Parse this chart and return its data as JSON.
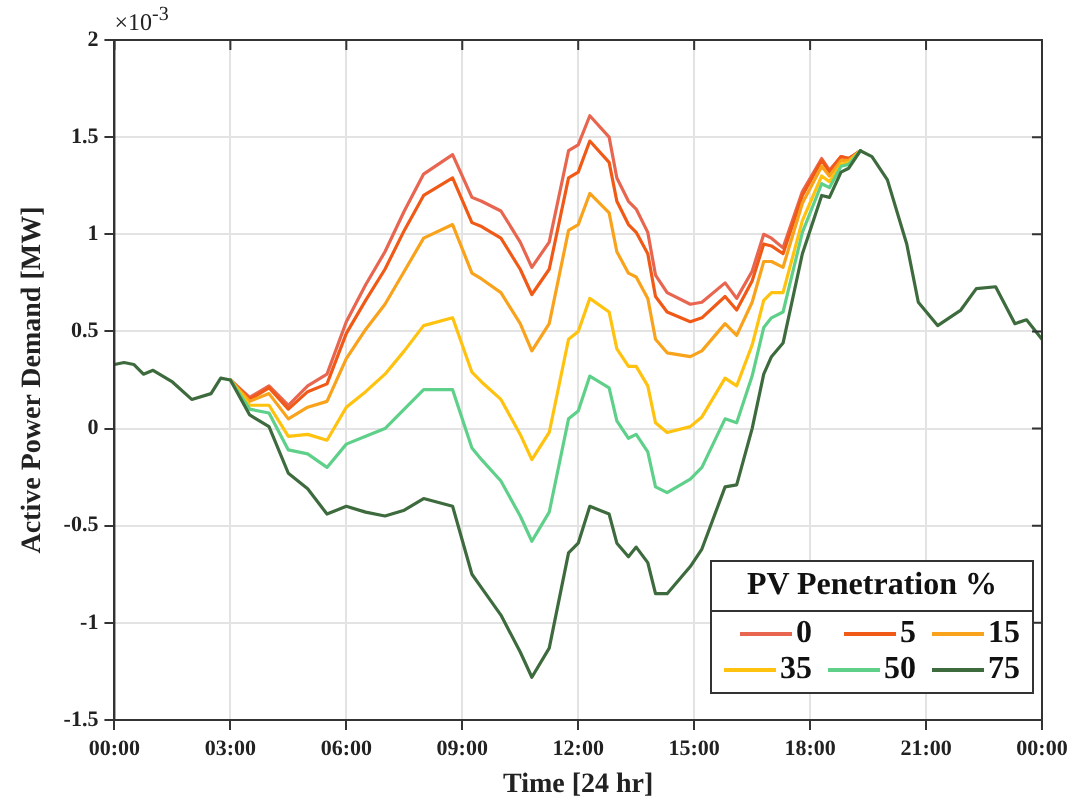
{
  "chart_data": {
    "type": "line",
    "xlabel": "Time [24 hr]",
    "ylabel": "Active Power Demand [MW]",
    "legend_title": "PV Penetration %",
    "annotations": [
      "×10$^{-3}$"
    ],
    "x": [
      0,
      0.25,
      0.5,
      0.75,
      1,
      1.5,
      2,
      2.5,
      2.75,
      3,
      3.5,
      4,
      4.5,
      5,
      5.5,
      6,
      6.5,
      7,
      7.5,
      8,
      8.75,
      9.25,
      9.5,
      10,
      10.5,
      10.8,
      11.25,
      11.75,
      12,
      12.3,
      12.8,
      13,
      13.3,
      13.5,
      13.8,
      14,
      14.3,
      14.9,
      15.2,
      15.8,
      16.1,
      16.5,
      16.8,
      17,
      17.3,
      17.8,
      18.3,
      18.5,
      18.8,
      19,
      19.3,
      19.6,
      20,
      20.5,
      20.8,
      21.3,
      21.9,
      22.3,
      22.8,
      23.3,
      23.6,
      24
    ],
    "series": [
      {
        "name": "0",
        "color": "#e8664f",
        "values": [
          null,
          null,
          null,
          null,
          null,
          null,
          null,
          null,
          null,
          0.25,
          0.16,
          0.22,
          0.12,
          0.22,
          0.28,
          0.55,
          0.74,
          0.91,
          1.12,
          1.31,
          1.41,
          1.19,
          1.17,
          1.12,
          0.96,
          0.83,
          0.96,
          1.43,
          1.46,
          1.61,
          1.5,
          1.29,
          1.17,
          1.13,
          1.01,
          0.79,
          0.7,
          0.64,
          0.65,
          0.75,
          0.67,
          0.81,
          1.0,
          0.98,
          0.93,
          1.22,
          1.39,
          1.33,
          1.4,
          1.39,
          1.43,
          null,
          null,
          null,
          null,
          null,
          null,
          null,
          null,
          null,
          null,
          null
        ]
      },
      {
        "name": "5",
        "color": "#f05a16",
        "values": [
          null,
          null,
          null,
          null,
          null,
          null,
          null,
          null,
          null,
          0.25,
          0.15,
          0.21,
          0.1,
          0.19,
          0.23,
          0.49,
          0.66,
          0.82,
          1.02,
          1.2,
          1.29,
          1.06,
          1.04,
          0.98,
          0.82,
          0.69,
          0.82,
          1.29,
          1.32,
          1.48,
          1.37,
          1.17,
          1.05,
          1.01,
          0.9,
          0.68,
          0.6,
          0.55,
          0.57,
          0.68,
          0.61,
          0.76,
          0.95,
          0.94,
          0.9,
          1.2,
          1.38,
          1.32,
          1.4,
          1.39,
          1.43,
          null,
          null,
          null,
          null,
          null,
          null,
          null,
          null,
          null,
          null,
          null
        ]
      },
      {
        "name": "15",
        "color": "#f9a21b",
        "values": [
          null,
          null,
          null,
          null,
          null,
          null,
          null,
          null,
          null,
          0.25,
          0.14,
          0.18,
          0.05,
          0.11,
          0.14,
          0.36,
          0.51,
          0.64,
          0.81,
          0.98,
          1.05,
          0.8,
          0.77,
          0.7,
          0.54,
          0.4,
          0.54,
          1.02,
          1.05,
          1.21,
          1.11,
          0.91,
          0.8,
          0.78,
          0.67,
          0.46,
          0.39,
          0.37,
          0.4,
          0.54,
          0.48,
          0.65,
          0.86,
          0.86,
          0.83,
          1.16,
          1.35,
          1.3,
          1.38,
          1.38,
          1.43,
          null,
          null,
          null,
          null,
          null,
          null,
          null,
          null,
          null,
          null,
          null
        ]
      },
      {
        "name": "35",
        "color": "#ffc20e",
        "values": [
          null,
          null,
          null,
          null,
          null,
          null,
          null,
          null,
          null,
          0.25,
          0.12,
          0.12,
          -0.04,
          -0.03,
          -0.06,
          0.11,
          0.19,
          0.28,
          0.4,
          0.53,
          0.57,
          0.29,
          0.24,
          0.15,
          -0.03,
          -0.16,
          -0.02,
          0.46,
          0.5,
          0.67,
          0.6,
          0.41,
          0.32,
          0.32,
          0.22,
          0.03,
          -0.02,
          0.01,
          0.06,
          0.26,
          0.22,
          0.43,
          0.66,
          0.7,
          0.7,
          1.07,
          1.3,
          1.27,
          1.36,
          1.37,
          1.43,
          null,
          null,
          null,
          null,
          null,
          null,
          null,
          null,
          null,
          null,
          null
        ]
      },
      {
        "name": "50",
        "color": "#5fd08a",
        "values": [
          null,
          null,
          null,
          null,
          null,
          null,
          null,
          null,
          null,
          0.25,
          0.1,
          0.08,
          -0.11,
          -0.13,
          -0.2,
          -0.08,
          -0.04,
          0.0,
          0.1,
          0.2,
          0.2,
          -0.1,
          -0.16,
          -0.27,
          -0.45,
          -0.58,
          -0.43,
          0.05,
          0.09,
          0.27,
          0.21,
          0.04,
          -0.05,
          -0.03,
          -0.12,
          -0.3,
          -0.33,
          -0.26,
          -0.2,
          0.05,
          0.03,
          0.27,
          0.52,
          0.57,
          0.6,
          1.01,
          1.26,
          1.24,
          1.35,
          1.36,
          1.43,
          null,
          null,
          null,
          null,
          null,
          null,
          null,
          null,
          null,
          null,
          null
        ]
      },
      {
        "name": "75",
        "color": "#3d6b3d",
        "values": [
          0.33,
          0.34,
          0.33,
          0.28,
          0.3,
          0.24,
          0.15,
          0.18,
          0.26,
          0.25,
          0.07,
          0.01,
          -0.23,
          -0.31,
          -0.44,
          -0.4,
          -0.43,
          -0.45,
          -0.42,
          -0.36,
          -0.4,
          -0.75,
          -0.82,
          -0.96,
          -1.15,
          -1.28,
          -1.13,
          -0.64,
          -0.59,
          -0.4,
          -0.44,
          -0.59,
          -0.66,
          -0.61,
          -0.69,
          -0.85,
          -0.85,
          -0.71,
          -0.62,
          -0.3,
          -0.29,
          0.0,
          0.28,
          0.37,
          0.44,
          0.9,
          1.2,
          1.19,
          1.32,
          1.34,
          1.43,
          1.4,
          1.28,
          0.95,
          0.65,
          0.53,
          0.61,
          0.72,
          0.73,
          0.54,
          0.56,
          0.46
        ]
      }
    ],
    "xlim": [
      0,
      24
    ],
    "xticks": [
      {
        "value": 0,
        "label": "00:00"
      },
      {
        "value": 3,
        "label": "03:00"
      },
      {
        "value": 6,
        "label": "06:00"
      },
      {
        "value": 9,
        "label": "09:00"
      },
      {
        "value": 12,
        "label": "12:00"
      },
      {
        "value": 15,
        "label": "15:00"
      },
      {
        "value": 18,
        "label": "18:00"
      },
      {
        "value": 21,
        "label": "21:00"
      },
      {
        "value": 24,
        "label": "00:00"
      }
    ],
    "ylim": [
      -1.5,
      2
    ],
    "yticks": [
      -1.5,
      -1,
      -0.5,
      0,
      0.5,
      1,
      1.5,
      2
    ],
    "grid": true,
    "legend": "bottom right",
    "marker": "none",
    "line_style": "solid"
  }
}
